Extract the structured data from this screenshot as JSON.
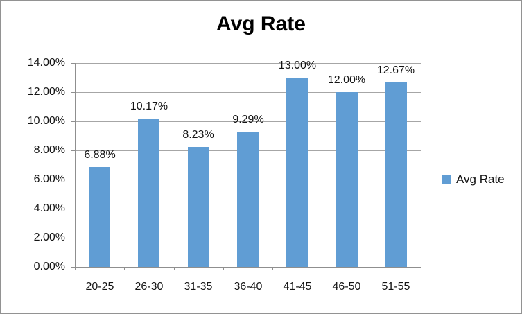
{
  "chart_data": {
    "type": "bar",
    "title": "Avg Rate",
    "categories": [
      "20-25",
      "26-30",
      "31-35",
      "36-40",
      "41-45",
      "46-50",
      "51-55"
    ],
    "series": [
      {
        "name": "Avg Rate",
        "values": [
          6.88,
          10.17,
          8.23,
          9.29,
          13.0,
          12.0,
          12.67
        ],
        "data_labels": [
          "6.88%",
          "10.17%",
          "8.23%",
          "9.29%",
          "13.00%",
          "12.00%",
          "12.67%"
        ]
      }
    ],
    "xlabel": "",
    "ylabel": "",
    "ylim": [
      0,
      14
    ],
    "y_tick_step": 2,
    "y_tick_labels": [
      "0.00%",
      "2.00%",
      "4.00%",
      "6.00%",
      "8.00%",
      "10.00%",
      "12.00%",
      "14.00%"
    ],
    "grid": true,
    "legend": {
      "label": "Avg Rate",
      "position": "right"
    },
    "colors": {
      "bar_fill": "#609dd4",
      "gridline": "#a6a6a6",
      "axis": "#8f8f8f",
      "text": "#141414",
      "border": "#929292"
    }
  }
}
